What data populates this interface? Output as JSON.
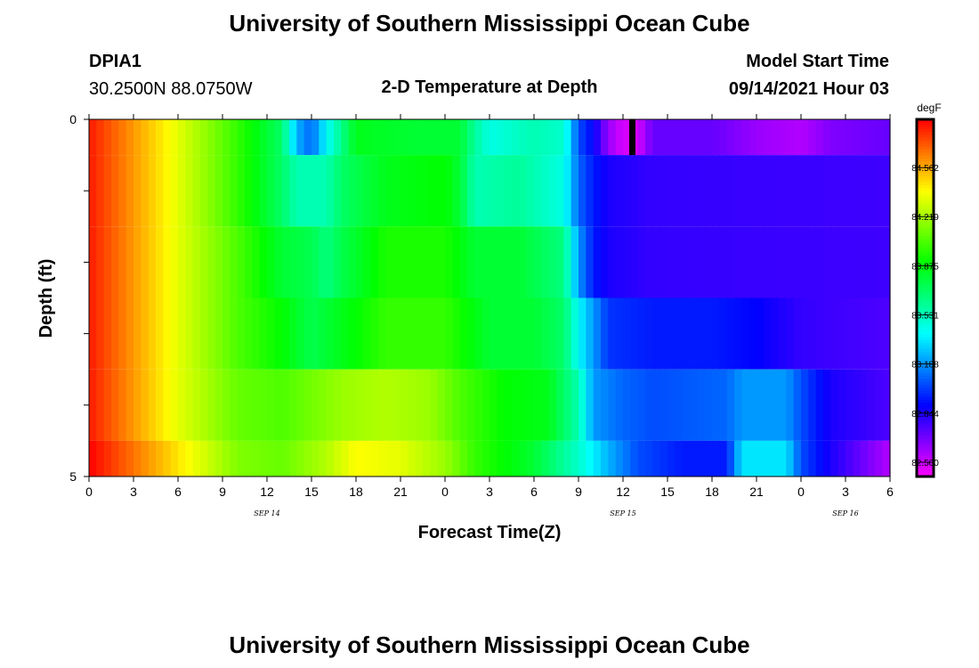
{
  "header": {
    "title": "University of Southern Mississippi Ocean Cube",
    "station_id": "DPIA1",
    "station_coords": "30.2500N  88.0750W",
    "plot_title": "2-D Temperature at Depth",
    "model_start_label": "Model Start Time",
    "model_start_value": "09/14/2021 Hour 03"
  },
  "footer": {
    "title": "University of Southern Mississippi Ocean Cube"
  },
  "colors": {
    "gap_marker": "#000000"
  },
  "chart_data": {
    "type": "heatmap",
    "title": "2-D Temperature at Depth",
    "xlabel": "Forecast Time(Z)",
    "ylabel": "Depth (ft)",
    "units": "degF",
    "x_unit": "forecast hours since 09/14/2021 00Z",
    "xlim": [
      0,
      54
    ],
    "ylim": [
      0,
      5
    ],
    "x_ticks": [
      0,
      3,
      6,
      9,
      12,
      15,
      18,
      21,
      24,
      27,
      30,
      33,
      36,
      39,
      42,
      45,
      48,
      51,
      54
    ],
    "x_tick_labels": [
      "0",
      "3",
      "6",
      "9",
      "12",
      "15",
      "18",
      "21",
      "0",
      "3",
      "6",
      "9",
      "12",
      "15",
      "18",
      "21",
      "0",
      "3",
      "6"
    ],
    "y_ticks": [
      0,
      1,
      2,
      3,
      4,
      5
    ],
    "y_tick_labels": [
      "0",
      "",
      "",
      "",
      "",
      "5"
    ],
    "date_labels": [
      {
        "x": 12,
        "label": "SEP 14"
      },
      {
        "x": 36,
        "label": "SEP 15"
      },
      {
        "x": 51,
        "label": "SEP 16"
      }
    ],
    "colorbar": {
      "label": "degF",
      "min": 82.4,
      "max": 84.9,
      "ticks": [
        82.5,
        82.844,
        83.188,
        83.531,
        83.875,
        84.219,
        84.562
      ],
      "tick_labels": [
        "82.500",
        "82.844",
        "83.188",
        "83.531",
        "83.875",
        "84.219",
        "84.562"
      ]
    },
    "depth_layers": [
      {
        "depth_range": [
          0,
          0.5
        ],
        "keypoints": [
          [
            0,
            84.85
          ],
          [
            6,
            84.35
          ],
          [
            10,
            84.0
          ],
          [
            13,
            83.7
          ],
          [
            14,
            83.25
          ],
          [
            15,
            83.1
          ],
          [
            16,
            83.4
          ],
          [
            18,
            83.85
          ],
          [
            22,
            83.8
          ],
          [
            25,
            83.8
          ],
          [
            26,
            83.6
          ],
          [
            27,
            83.45
          ],
          [
            30,
            83.55
          ],
          [
            32,
            83.5
          ],
          [
            33,
            83.05
          ],
          [
            34,
            82.9
          ],
          [
            35,
            82.6
          ],
          [
            36,
            82.48
          ],
          [
            37,
            82.48
          ],
          [
            38,
            82.7
          ],
          [
            42,
            82.7
          ],
          [
            45,
            82.6
          ],
          [
            48,
            82.55
          ],
          [
            50,
            82.65
          ],
          [
            54,
            82.7
          ]
        ]
      },
      {
        "depth_range": [
          0.5,
          1.5
        ],
        "keypoints": [
          [
            0,
            84.85
          ],
          [
            6,
            84.35
          ],
          [
            10,
            84.0
          ],
          [
            13,
            83.7
          ],
          [
            14,
            83.55
          ],
          [
            16,
            83.55
          ],
          [
            17,
            83.7
          ],
          [
            20,
            83.85
          ],
          [
            24,
            83.9
          ],
          [
            25,
            83.8
          ],
          [
            26,
            83.55
          ],
          [
            29,
            83.6
          ],
          [
            32,
            83.45
          ],
          [
            33,
            83.1
          ],
          [
            34,
            82.95
          ],
          [
            35,
            82.85
          ],
          [
            38,
            82.8
          ],
          [
            54,
            82.78
          ]
        ]
      },
      {
        "depth_range": [
          1.5,
          2.5
        ],
        "keypoints": [
          [
            0,
            84.85
          ],
          [
            6,
            84.35
          ],
          [
            10,
            84.05
          ],
          [
            13,
            83.8
          ],
          [
            15,
            83.75
          ],
          [
            16,
            83.65
          ],
          [
            17,
            83.75
          ],
          [
            20,
            83.95
          ],
          [
            24,
            83.95
          ],
          [
            26,
            83.8
          ],
          [
            29,
            83.8
          ],
          [
            32,
            83.65
          ],
          [
            33,
            83.2
          ],
          [
            34,
            82.95
          ],
          [
            35,
            82.85
          ],
          [
            38,
            82.8
          ],
          [
            54,
            82.78
          ]
        ]
      },
      {
        "depth_range": [
          2.5,
          3.5
        ],
        "keypoints": [
          [
            0,
            84.85
          ],
          [
            6,
            84.35
          ],
          [
            10,
            84.05
          ],
          [
            13,
            83.9
          ],
          [
            15,
            83.75
          ],
          [
            17,
            83.85
          ],
          [
            20,
            84.0
          ],
          [
            24,
            84.0
          ],
          [
            27,
            83.8
          ],
          [
            30,
            83.8
          ],
          [
            32,
            83.7
          ],
          [
            33,
            83.4
          ],
          [
            35,
            83.0
          ],
          [
            38,
            82.95
          ],
          [
            42,
            82.95
          ],
          [
            45,
            82.9
          ],
          [
            48,
            82.8
          ],
          [
            54,
            82.75
          ]
        ]
      },
      {
        "depth_range": [
          3.5,
          4.5
        ],
        "keypoints": [
          [
            0,
            84.85
          ],
          [
            6,
            84.35
          ],
          [
            10,
            84.1
          ],
          [
            13,
            84.05
          ],
          [
            17,
            84.2
          ],
          [
            20,
            84.25
          ],
          [
            23,
            84.2
          ],
          [
            25,
            84.05
          ],
          [
            28,
            83.9
          ],
          [
            31,
            83.85
          ],
          [
            33,
            83.55
          ],
          [
            34,
            83.2
          ],
          [
            36,
            83.1
          ],
          [
            38,
            83.05
          ],
          [
            43,
            83.1
          ],
          [
            44,
            83.2
          ],
          [
            47,
            83.2
          ],
          [
            48,
            83.05
          ],
          [
            50,
            82.85
          ],
          [
            54,
            82.75
          ]
        ]
      },
      {
        "depth_range": [
          4.5,
          5
        ],
        "keypoints": [
          [
            0,
            84.9
          ],
          [
            6,
            84.45
          ],
          [
            10,
            84.15
          ],
          [
            13,
            84.1
          ],
          [
            16,
            84.25
          ],
          [
            18,
            84.4
          ],
          [
            21,
            84.35
          ],
          [
            24,
            84.2
          ],
          [
            26,
            84.0
          ],
          [
            30,
            83.8
          ],
          [
            33,
            83.5
          ],
          [
            35,
            83.25
          ],
          [
            37,
            83.05
          ],
          [
            40,
            82.95
          ],
          [
            43,
            82.95
          ],
          [
            44,
            83.35
          ],
          [
            47,
            83.35
          ],
          [
            48,
            83.05
          ],
          [
            50,
            82.85
          ],
          [
            54,
            82.55
          ]
        ]
      }
    ],
    "gap_marker": {
      "x": 36.6,
      "depth_range": [
        0,
        0.5
      ]
    }
  }
}
